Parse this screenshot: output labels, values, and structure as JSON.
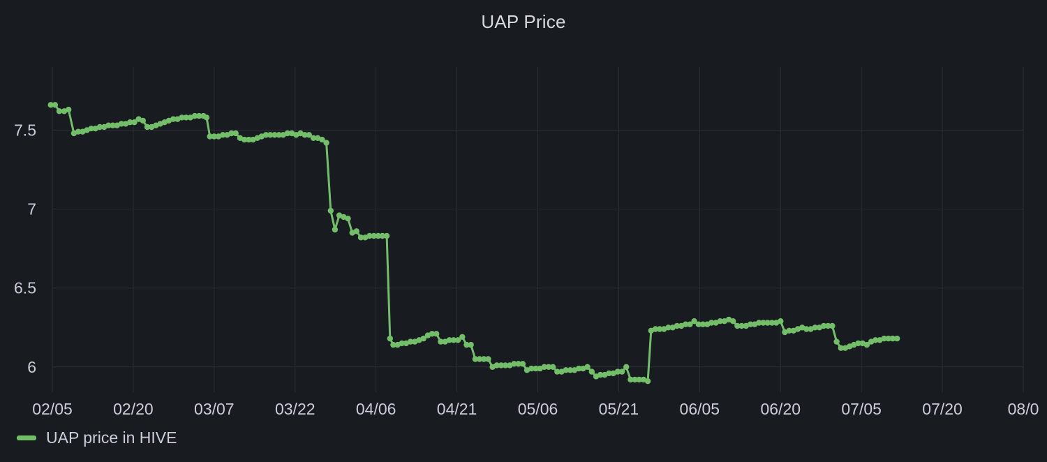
{
  "panel": {
    "title": "UAP Price"
  },
  "colors": {
    "background": "#181b1f",
    "grid": "#2c2f35",
    "series": "#73bf69",
    "text": "#ccccdc"
  },
  "chart_data": {
    "type": "line",
    "title": "UAP Price",
    "xlabel": "",
    "ylabel": "",
    "x_tick_labels": [
      "02/05",
      "02/20",
      "03/07",
      "03/22",
      "04/06",
      "04/21",
      "05/06",
      "05/21",
      "06/05",
      "06/20",
      "07/05",
      "07/20",
      "08/0"
    ],
    "y_tick_labels": [
      "6",
      "6.5",
      "7",
      "7.5"
    ],
    "y_ticks": [
      6,
      6.5,
      7,
      7.5
    ],
    "ylim": [
      5.84,
      7.9
    ],
    "xlim_days": [
      0,
      180
    ],
    "grid": true,
    "legend_position": "bottom-left",
    "series": [
      {
        "name": "UAP price in HIVE",
        "color": "#73bf69",
        "x_unit": "days since 02/05",
        "points": [
          [
            -0.3,
            7.66
          ],
          [
            0.5,
            7.66
          ],
          [
            1.3,
            7.62
          ],
          [
            2.2,
            7.62
          ],
          [
            3.0,
            7.63
          ],
          [
            4.0,
            7.48
          ],
          [
            4.8,
            7.49
          ],
          [
            5.6,
            7.49
          ],
          [
            6.4,
            7.5
          ],
          [
            7.2,
            7.51
          ],
          [
            8.0,
            7.51
          ],
          [
            8.8,
            7.52
          ],
          [
            9.6,
            7.52
          ],
          [
            10.4,
            7.53
          ],
          [
            11.2,
            7.53
          ],
          [
            12.0,
            7.53
          ],
          [
            12.8,
            7.54
          ],
          [
            13.6,
            7.54
          ],
          [
            14.4,
            7.55
          ],
          [
            15.2,
            7.55
          ],
          [
            16.0,
            7.57
          ],
          [
            16.8,
            7.56
          ],
          [
            17.6,
            7.52
          ],
          [
            18.4,
            7.52
          ],
          [
            19.2,
            7.53
          ],
          [
            20.0,
            7.54
          ],
          [
            20.8,
            7.55
          ],
          [
            21.6,
            7.56
          ],
          [
            22.4,
            7.57
          ],
          [
            23.2,
            7.57
          ],
          [
            24.0,
            7.58
          ],
          [
            24.8,
            7.58
          ],
          [
            25.6,
            7.58
          ],
          [
            26.4,
            7.59
          ],
          [
            27.2,
            7.59
          ],
          [
            28.0,
            7.59
          ],
          [
            28.6,
            7.58
          ],
          [
            29.2,
            7.46
          ],
          [
            30.0,
            7.46
          ],
          [
            30.8,
            7.46
          ],
          [
            31.6,
            7.47
          ],
          [
            32.4,
            7.47
          ],
          [
            33.2,
            7.48
          ],
          [
            34.0,
            7.48
          ],
          [
            34.8,
            7.45
          ],
          [
            35.6,
            7.44
          ],
          [
            36.4,
            7.44
          ],
          [
            37.2,
            7.44
          ],
          [
            38.0,
            7.45
          ],
          [
            38.8,
            7.46
          ],
          [
            39.6,
            7.47
          ],
          [
            40.4,
            7.47
          ],
          [
            41.2,
            7.47
          ],
          [
            42.0,
            7.47
          ],
          [
            42.8,
            7.47
          ],
          [
            43.6,
            7.48
          ],
          [
            44.4,
            7.48
          ],
          [
            45.2,
            7.47
          ],
          [
            46.0,
            7.48
          ],
          [
            46.8,
            7.47
          ],
          [
            47.6,
            7.47
          ],
          [
            48.4,
            7.45
          ],
          [
            49.2,
            7.45
          ],
          [
            50.0,
            7.44
          ],
          [
            50.8,
            7.42
          ],
          [
            51.6,
            6.99
          ],
          [
            52.4,
            6.87
          ],
          [
            53.2,
            6.96
          ],
          [
            54.0,
            6.95
          ],
          [
            54.8,
            6.94
          ],
          [
            55.6,
            6.85
          ],
          [
            56.4,
            6.86
          ],
          [
            57.2,
            6.82
          ],
          [
            58.0,
            6.82
          ],
          [
            58.8,
            6.83
          ],
          [
            59.6,
            6.83
          ],
          [
            60.4,
            6.83
          ],
          [
            61.2,
            6.83
          ],
          [
            62.0,
            6.83
          ],
          [
            62.6,
            6.18
          ],
          [
            63.2,
            6.14
          ],
          [
            64.0,
            6.14
          ],
          [
            64.8,
            6.15
          ],
          [
            65.6,
            6.15
          ],
          [
            66.4,
            6.16
          ],
          [
            67.2,
            6.16
          ],
          [
            68.0,
            6.17
          ],
          [
            68.8,
            6.18
          ],
          [
            69.6,
            6.2
          ],
          [
            70.4,
            6.21
          ],
          [
            71.2,
            6.21
          ],
          [
            72.0,
            6.16
          ],
          [
            72.8,
            6.16
          ],
          [
            73.6,
            6.17
          ],
          [
            74.4,
            6.17
          ],
          [
            75.2,
            6.17
          ],
          [
            76.0,
            6.19
          ],
          [
            76.8,
            6.14
          ],
          [
            77.6,
            6.14
          ],
          [
            78.4,
            6.05
          ],
          [
            79.2,
            6.05
          ],
          [
            80.0,
            6.05
          ],
          [
            80.8,
            6.05
          ],
          [
            81.6,
            6.0
          ],
          [
            82.4,
            6.01
          ],
          [
            83.2,
            6.01
          ],
          [
            84.0,
            6.01
          ],
          [
            84.8,
            6.01
          ],
          [
            85.6,
            6.02
          ],
          [
            86.4,
            6.02
          ],
          [
            87.2,
            6.02
          ],
          [
            88.0,
            5.98
          ],
          [
            88.8,
            5.99
          ],
          [
            89.6,
            5.99
          ],
          [
            90.4,
            5.99
          ],
          [
            91.2,
            6.0
          ],
          [
            92.0,
            6.0
          ],
          [
            92.8,
            6.0
          ],
          [
            93.6,
            5.97
          ],
          [
            94.4,
            5.97
          ],
          [
            95.2,
            5.98
          ],
          [
            96.0,
            5.98
          ],
          [
            96.8,
            5.98
          ],
          [
            97.6,
            5.99
          ],
          [
            98.4,
            5.99
          ],
          [
            99.2,
            6.0
          ],
          [
            100.0,
            5.97
          ],
          [
            100.8,
            5.94
          ],
          [
            101.6,
            5.95
          ],
          [
            102.4,
            5.95
          ],
          [
            103.2,
            5.96
          ],
          [
            104.0,
            5.96
          ],
          [
            104.8,
            5.97
          ],
          [
            105.6,
            5.97
          ],
          [
            106.4,
            6.0
          ],
          [
            107.2,
            5.92
          ],
          [
            108.0,
            5.92
          ],
          [
            108.8,
            5.92
          ],
          [
            109.6,
            5.92
          ],
          [
            110.4,
            5.91
          ],
          [
            111.0,
            6.23
          ],
          [
            111.8,
            6.24
          ],
          [
            112.6,
            6.24
          ],
          [
            113.4,
            6.24
          ],
          [
            114.2,
            6.25
          ],
          [
            115.0,
            6.25
          ],
          [
            115.8,
            6.26
          ],
          [
            116.6,
            6.26
          ],
          [
            117.4,
            6.27
          ],
          [
            118.2,
            6.27
          ],
          [
            119.0,
            6.29
          ],
          [
            119.8,
            6.27
          ],
          [
            120.6,
            6.27
          ],
          [
            121.4,
            6.27
          ],
          [
            122.2,
            6.28
          ],
          [
            123.0,
            6.28
          ],
          [
            123.8,
            6.29
          ],
          [
            124.6,
            6.29
          ],
          [
            125.4,
            6.3
          ],
          [
            126.2,
            6.29
          ],
          [
            127.0,
            6.26
          ],
          [
            127.8,
            6.26
          ],
          [
            128.6,
            6.26
          ],
          [
            129.4,
            6.27
          ],
          [
            130.2,
            6.27
          ],
          [
            131.0,
            6.28
          ],
          [
            131.8,
            6.28
          ],
          [
            132.6,
            6.28
          ],
          [
            133.4,
            6.28
          ],
          [
            134.2,
            6.28
          ],
          [
            135.0,
            6.29
          ],
          [
            135.8,
            6.22
          ],
          [
            136.6,
            6.23
          ],
          [
            137.4,
            6.23
          ],
          [
            138.2,
            6.24
          ],
          [
            139.0,
            6.25
          ],
          [
            139.8,
            6.24
          ],
          [
            140.6,
            6.24
          ],
          [
            141.4,
            6.25
          ],
          [
            142.2,
            6.25
          ],
          [
            143.0,
            6.26
          ],
          [
            143.8,
            6.26
          ],
          [
            144.6,
            6.26
          ],
          [
            145.4,
            6.16
          ],
          [
            146.2,
            6.12
          ],
          [
            147.0,
            6.12
          ],
          [
            147.8,
            6.13
          ],
          [
            148.6,
            6.14
          ],
          [
            149.4,
            6.15
          ],
          [
            150.2,
            6.15
          ],
          [
            151.0,
            6.14
          ],
          [
            151.8,
            6.16
          ],
          [
            152.6,
            6.17
          ],
          [
            153.4,
            6.17
          ],
          [
            154.2,
            6.18
          ],
          [
            155.0,
            6.18
          ],
          [
            155.8,
            6.18
          ],
          [
            156.6,
            6.18
          ]
        ]
      }
    ]
  },
  "legend": {
    "items": [
      {
        "label": "UAP price in HIVE"
      }
    ]
  }
}
